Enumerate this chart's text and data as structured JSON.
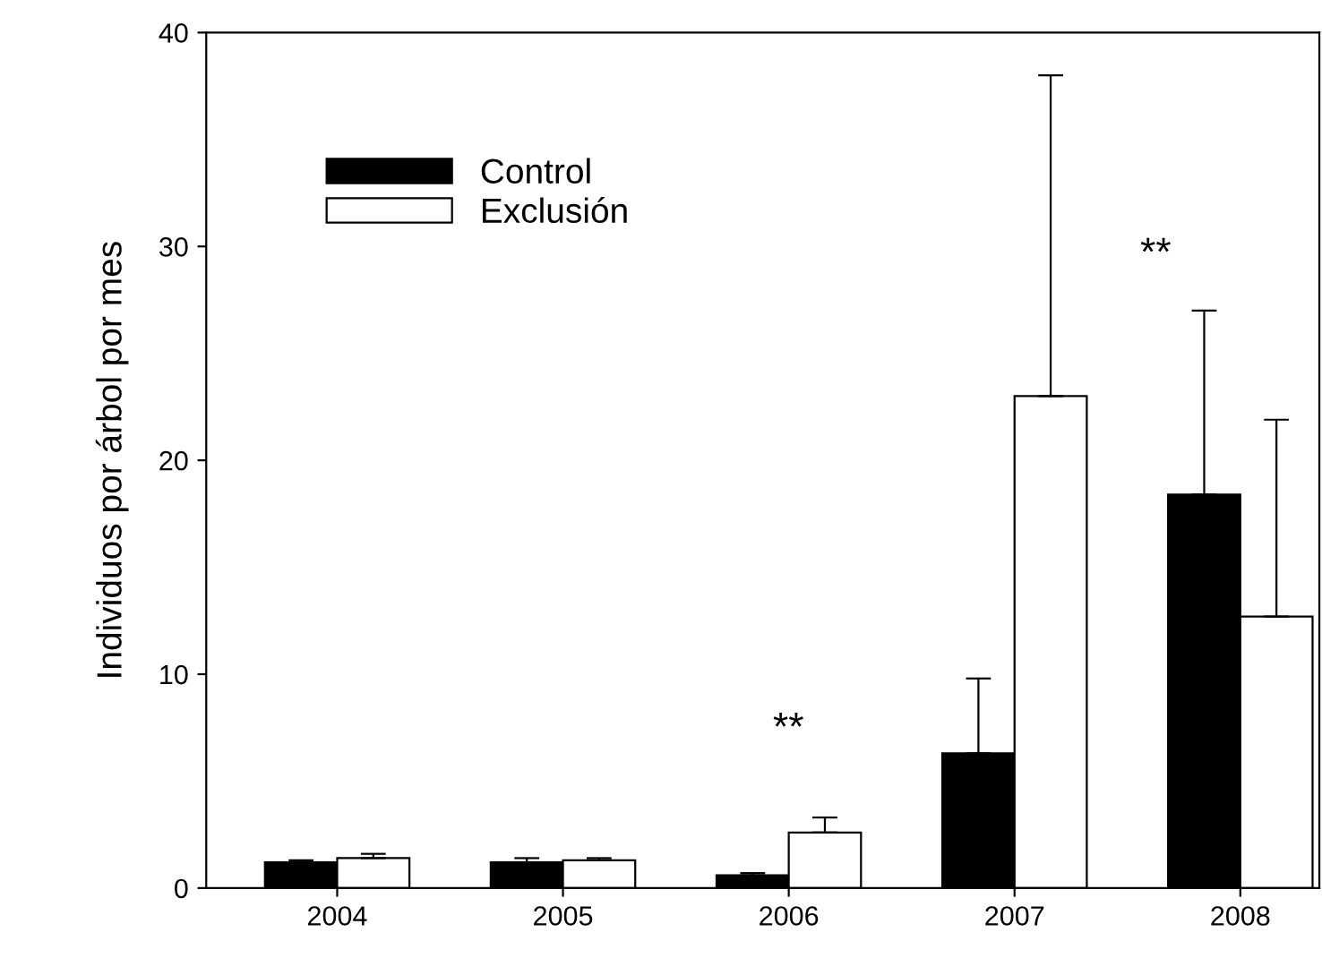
{
  "chart_data": {
    "type": "bar",
    "ylabel": "Individuos por árbol por mes",
    "categories": [
      "2004",
      "2005",
      "2006",
      "2007",
      "2008"
    ],
    "series": [
      {
        "name": "Control",
        "color": "#000000",
        "values": [
          1.2,
          1.2,
          0.6,
          6.3,
          18.4
        ],
        "errors": [
          [
            1.2,
            1.3
          ],
          [
            1.2,
            1.4
          ],
          [
            0.6,
            0.7
          ],
          [
            6.3,
            9.8
          ],
          [
            18.4,
            27.0
          ]
        ]
      },
      {
        "name": "Exclusión",
        "color": "#ffffff",
        "values": [
          1.4,
          1.3,
          2.6,
          23.0,
          12.7
        ],
        "errors": [
          [
            1.4,
            1.6
          ],
          [
            1.3,
            1.4
          ],
          [
            2.6,
            3.3
          ],
          [
            23.0,
            38.0
          ],
          [
            12.7,
            21.9
          ]
        ]
      }
    ],
    "annotations": [
      "**",
      "**"
    ],
    "ylim": [
      0,
      40
    ],
    "yticks": [
      0,
      10,
      20,
      30,
      40
    ],
    "grid": false,
    "legend": "top left"
  }
}
